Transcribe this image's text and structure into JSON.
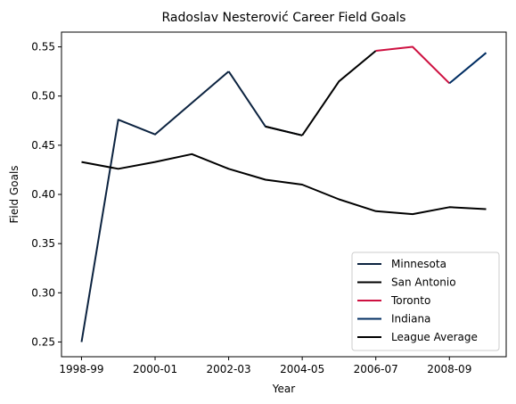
{
  "chart_data": {
    "type": "line",
    "title": "Radoslav Nesterović Career Field Goals",
    "xlabel": "Year",
    "ylabel": "Field Goals",
    "x_ticks": [
      "1998-99",
      "2000-01",
      "2002-03",
      "2004-05",
      "2006-07",
      "2008-09"
    ],
    "y_ticks": [
      "0.25",
      "0.30",
      "0.35",
      "0.40",
      "0.45",
      "0.50",
      "0.55"
    ],
    "ylim": [
      0.235,
      0.565
    ],
    "seasons": [
      "1998-99",
      "1999-00",
      "2000-01",
      "2001-02",
      "2002-03",
      "2003-04",
      "2004-05",
      "2005-06",
      "2006-07",
      "2007-08",
      "2008-09",
      "2009-10"
    ],
    "series": [
      {
        "name": "Minnesota",
        "color": "#0c2340",
        "x": [
          "1998-99",
          "1999-00",
          "2000-01",
          "2001-02",
          "2002-03"
        ],
        "values": [
          0.25,
          0.476,
          0.461,
          0.493,
          0.525
        ]
      },
      {
        "name": "San Antonio",
        "color": "#000000",
        "x": [
          "2004-05",
          "2005-06",
          "2006-07"
        ],
        "values": [
          0.46,
          0.515,
          0.546
        ]
      },
      {
        "name": "Toronto",
        "color": "#ce1141",
        "x": [
          "2006-07",
          "2007-08",
          "2008-09"
        ],
        "values": [
          0.546,
          0.55,
          0.513
        ]
      },
      {
        "name": "Indiana",
        "color": "#002d62",
        "x": [
          "2008-09",
          "2009-10"
        ],
        "values": [
          0.513,
          0.544
        ]
      },
      {
        "name": "League Average",
        "color": "#000000",
        "x": [
          "1998-99",
          "1999-00",
          "2000-01",
          "2001-02",
          "2002-03",
          "2003-04",
          "2004-05",
          "2005-06",
          "2006-07",
          "2007-08",
          "2008-09",
          "2009-10"
        ],
        "values": [
          0.433,
          0.426,
          0.433,
          0.441,
          0.426,
          0.415,
          0.41,
          0.395,
          0.383,
          0.38,
          0.387,
          0.385
        ]
      }
    ],
    "extra_segments": [
      {
        "color": "#0c2340",
        "x": [
          "2002-03",
          "2003-04",
          "2004-05"
        ],
        "values": [
          0.525,
          0.469,
          0.46
        ]
      },
      {
        "color": "#000000",
        "x": [
          "2003-04",
          "2004-05"
        ],
        "values": [
          0.469,
          0.46
        ]
      }
    ],
    "legend_position": "lower-right",
    "grid": false
  }
}
